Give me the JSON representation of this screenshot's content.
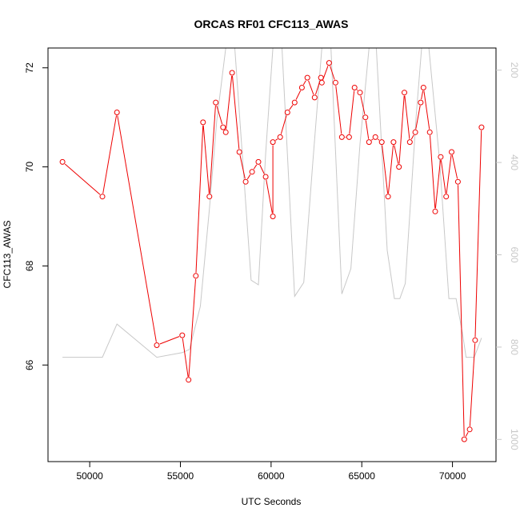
{
  "chart_data": {
    "type": "line",
    "title": "ORCAS RF01 CFC113_AWAS",
    "xlabel": "UTC Seconds",
    "ylabel": "CFC113_AWAS",
    "xlim": [
      47700,
      72400
    ],
    "ylim": [
      64.05,
      72.4
    ],
    "y2lim": [
      1048,
      152
    ],
    "x_ticks": [
      50000,
      55000,
      60000,
      65000,
      70000
    ],
    "x_tick_labels": [
      "50000",
      "55000",
      "60000",
      "65000",
      "70000"
    ],
    "y_ticks": [
      66,
      68,
      70,
      72
    ],
    "y_tick_labels": [
      "66",
      "68",
      "70",
      "72"
    ],
    "y2_ticks": [
      200,
      400,
      600,
      800,
      1000
    ],
    "y2_tick_labels": [
      "200",
      "400",
      "600",
      "800",
      "1000"
    ],
    "y2_reversed": true,
    "grid": false,
    "series": [
      {
        "role": "CFC113_AWAS",
        "axis": "left",
        "color": "#ee0000",
        "style": "line+circle",
        "points": [
          [
            48500,
            70.1
          ],
          [
            50700,
            69.4
          ],
          [
            51500,
            71.1
          ],
          [
            53700,
            66.4
          ],
          [
            55100,
            66.6
          ],
          [
            55450,
            65.7
          ],
          [
            55850,
            67.8
          ],
          [
            56250,
            70.9
          ],
          [
            56600,
            69.4
          ],
          [
            56950,
            71.3
          ],
          [
            57350,
            70.8
          ],
          [
            57500,
            70.7
          ],
          [
            57850,
            71.9
          ],
          [
            58250,
            70.3
          ],
          [
            58600,
            69.7
          ],
          [
            58950,
            69.9
          ],
          [
            59300,
            70.1
          ],
          [
            59700,
            69.8
          ],
          [
            60100,
            69.0
          ],
          [
            60100,
            70.5
          ],
          [
            60500,
            70.6
          ],
          [
            60900,
            71.1
          ],
          [
            61300,
            71.3
          ],
          [
            61700,
            71.6
          ],
          [
            62000,
            71.8
          ],
          [
            62400,
            71.4
          ],
          [
            62750,
            71.8
          ],
          [
            62800,
            71.7
          ],
          [
            63200,
            72.1
          ],
          [
            63550,
            71.7
          ],
          [
            63900,
            70.6
          ],
          [
            64300,
            70.6
          ],
          [
            64600,
            71.6
          ],
          [
            64900,
            71.5
          ],
          [
            65200,
            71.0
          ],
          [
            65400,
            70.5
          ],
          [
            65750,
            70.6
          ],
          [
            66100,
            70.5
          ],
          [
            66450,
            69.4
          ],
          [
            66750,
            70.5
          ],
          [
            67050,
            70.0
          ],
          [
            67350,
            71.5
          ],
          [
            67650,
            70.5
          ],
          [
            67950,
            70.7
          ],
          [
            68250,
            71.3
          ],
          [
            68400,
            71.6
          ],
          [
            68750,
            70.7
          ],
          [
            69050,
            69.1
          ],
          [
            69350,
            70.2
          ],
          [
            69650,
            69.4
          ],
          [
            69950,
            70.3
          ],
          [
            70300,
            69.7
          ],
          [
            70650,
            64.5
          ],
          [
            70950,
            64.7
          ],
          [
            71250,
            66.5
          ],
          [
            71600,
            70.8
          ]
        ]
      },
      {
        "role": "pressure",
        "axis": "right",
        "color": "#c8c8c8",
        "style": "line",
        "points": [
          [
            48500,
            822
          ],
          [
            50700,
            822
          ],
          [
            51500,
            750
          ],
          [
            53700,
            822
          ],
          [
            55100,
            812
          ],
          [
            55500,
            805
          ],
          [
            56100,
            712
          ],
          [
            56600,
            500
          ],
          [
            57000,
            310
          ],
          [
            57500,
            152
          ],
          [
            58000,
            152
          ],
          [
            58900,
            655
          ],
          [
            59300,
            665
          ],
          [
            59700,
            380
          ],
          [
            60100,
            152
          ],
          [
            60600,
            152
          ],
          [
            61300,
            690
          ],
          [
            61800,
            660
          ],
          [
            62300,
            400
          ],
          [
            62800,
            152
          ],
          [
            63300,
            152
          ],
          [
            63900,
            685
          ],
          [
            64400,
            630
          ],
          [
            64900,
            360
          ],
          [
            65400,
            152
          ],
          [
            65800,
            152
          ],
          [
            66400,
            590
          ],
          [
            66800,
            695
          ],
          [
            67100,
            695
          ],
          [
            67400,
            662
          ],
          [
            68000,
            300
          ],
          [
            68300,
            152
          ],
          [
            68700,
            152
          ],
          [
            69300,
            400
          ],
          [
            69800,
            695
          ],
          [
            70200,
            695
          ],
          [
            70550,
            770
          ],
          [
            70750,
            822
          ],
          [
            71200,
            822
          ],
          [
            71600,
            780
          ]
        ]
      }
    ]
  }
}
